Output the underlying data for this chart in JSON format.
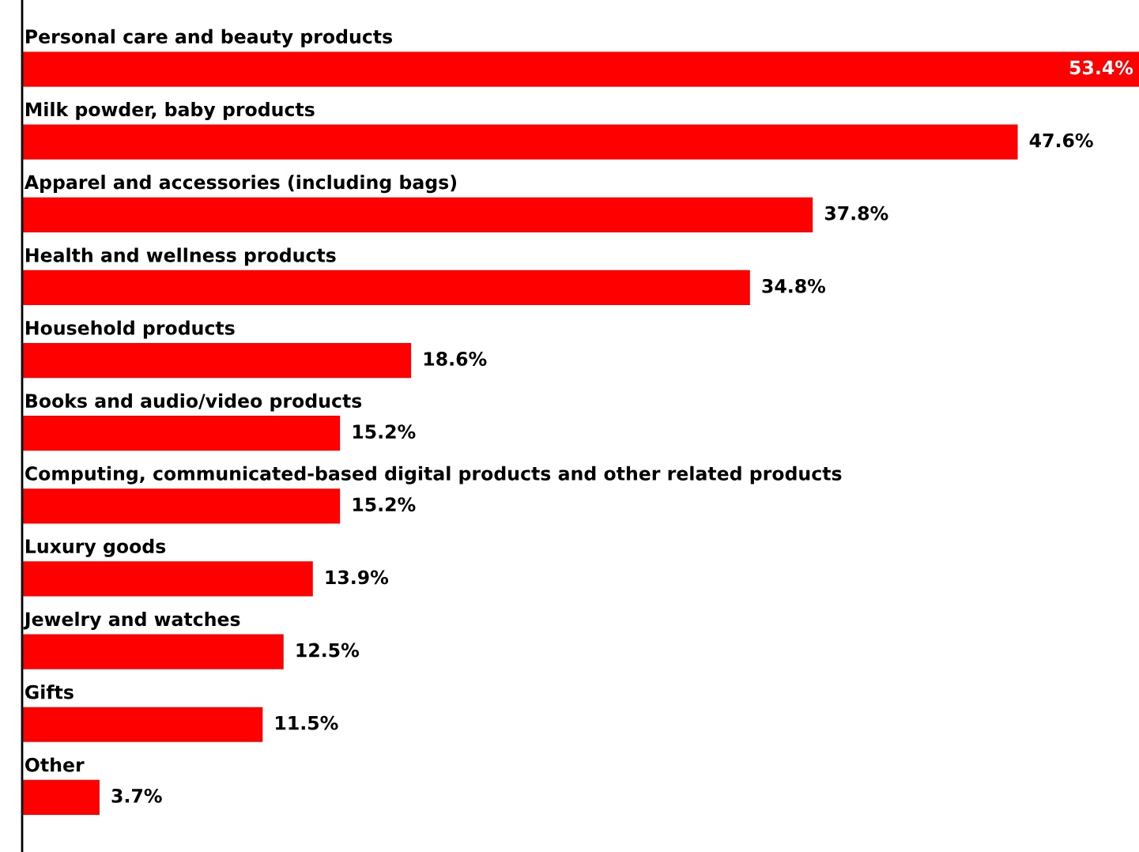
{
  "chart_data": {
    "type": "bar",
    "orientation": "horizontal",
    "color": "#ff0000",
    "categories": [
      "Personal care and beauty products",
      "Milk powder, baby products",
      "Apparel and accessories (including bags)",
      "Health and wellness products",
      "Household products",
      "Books and audio/video products",
      "Computing, communicated-based digital products and other related products",
      "Luxury goods",
      "Jewelry and watches",
      "Gifts",
      "Other"
    ],
    "values": [
      53.4,
      47.6,
      37.8,
      34.8,
      18.6,
      15.2,
      15.2,
      13.9,
      12.5,
      11.5,
      3.7
    ],
    "value_labels": [
      "53.4%",
      "47.6%",
      "37.8%",
      "34.8%",
      "18.6%",
      "15.2%",
      "15.2%",
      "13.9%",
      "12.5%",
      "11.5%",
      "3.7%"
    ],
    "data_labels": false
  }
}
